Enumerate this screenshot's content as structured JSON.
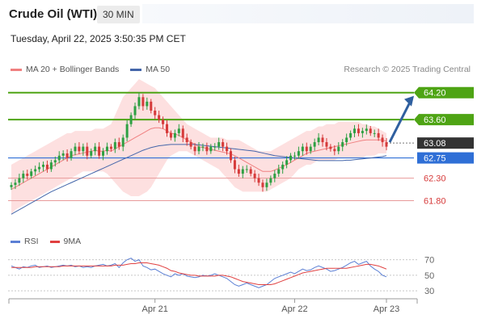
{
  "header": {
    "title": "Crude Oil (WTI)",
    "timeframe": "30 MIN",
    "timestamp": "Tuesday, April 22, 2025 3:50:35 PM CET"
  },
  "legend": {
    "ma20_label": "MA 20 + Bollinger Bands",
    "ma50_label": "MA 50",
    "credit": "Research © 2025 Trading Central"
  },
  "colors": {
    "up": "#2ea043",
    "down": "#d63a3a",
    "bollinger_fill": "#fde0e0",
    "ma20": "#f08080",
    "ma50": "#4466aa",
    "resistance": "#4ea414",
    "support_blue": "#2f6fd6",
    "support_red": "#e89a9a",
    "current": "#333333",
    "arrow": "#2f5f9f",
    "rsi": "#5b7fd4",
    "rsi_ma": "#e04040"
  },
  "chart_data": [
    {
      "type": "candlestick",
      "name": "price",
      "ylim": [
        61.2,
        64.5
      ],
      "x_ticks": [
        {
          "label": "Apr 21",
          "index": 36
        },
        {
          "label": "Apr 22",
          "index": 71
        },
        {
          "label": "Apr 23",
          "index": 94
        }
      ],
      "levels": [
        {
          "value": 64.2,
          "label": "64.20",
          "kind": "resistance"
        },
        {
          "value": 63.6,
          "label": "63.60",
          "kind": "resistance"
        },
        {
          "value": 63.08,
          "label": "63.08",
          "kind": "current"
        },
        {
          "value": 62.75,
          "label": "62.75",
          "kind": "support_blue"
        },
        {
          "value": 62.3,
          "label": "62.30",
          "kind": "support_red"
        },
        {
          "value": 61.8,
          "label": "61.80",
          "kind": "support_red"
        }
      ],
      "closes": [
        62.15,
        62.2,
        62.3,
        62.4,
        62.35,
        62.45,
        62.5,
        62.55,
        62.6,
        62.5,
        62.65,
        62.7,
        62.8,
        62.85,
        62.75,
        62.9,
        63.0,
        62.9,
        63.0,
        62.8,
        62.9,
        63.0,
        62.8,
        62.9,
        63.0,
        62.95,
        63.1,
        63.0,
        63.2,
        63.5,
        63.7,
        63.9,
        64.1,
        63.9,
        64.0,
        63.8,
        63.7,
        63.6,
        63.5,
        63.3,
        63.2,
        63.3,
        63.4,
        63.2,
        63.1,
        63.0,
        62.9,
        63.0,
        63.0,
        62.9,
        63.0,
        63.0,
        63.1,
        63.0,
        62.9,
        62.7,
        62.5,
        62.4,
        62.5,
        62.5,
        62.4,
        62.3,
        62.2,
        62.1,
        62.2,
        62.3,
        62.4,
        62.5,
        62.6,
        62.7,
        62.8,
        62.8,
        62.9,
        63.0,
        62.9,
        63.0,
        63.1,
        63.2,
        63.1,
        63.0,
        62.95,
        62.9,
        63.0,
        63.1,
        63.2,
        63.3,
        63.4,
        63.3,
        63.35,
        63.4,
        63.3,
        63.3,
        63.2,
        63.1,
        63.0
      ],
      "band_upper": [
        62.6,
        62.65,
        62.7,
        62.75,
        62.8,
        62.85,
        62.9,
        62.95,
        63.0,
        63.05,
        63.1,
        63.15,
        63.2,
        63.25,
        63.3,
        63.3,
        63.35,
        63.35,
        63.35,
        63.35,
        63.35,
        63.4,
        63.4,
        63.4,
        63.45,
        63.5,
        63.7,
        63.9,
        64.1,
        64.2,
        64.3,
        64.4,
        64.5,
        64.45,
        64.4,
        64.35,
        64.3,
        64.2,
        64.1,
        64.0,
        63.9,
        63.8,
        63.7,
        63.6,
        63.5,
        63.45,
        63.4,
        63.35,
        63.3,
        63.25,
        63.2,
        63.2,
        63.2,
        63.2,
        63.15,
        63.15,
        63.15,
        63.15,
        63.1,
        63.05,
        63.0,
        62.95,
        62.9,
        62.9,
        62.9,
        62.9,
        62.95,
        63.0,
        63.05,
        63.1,
        63.15,
        63.2,
        63.25,
        63.3,
        63.35,
        63.35,
        63.4,
        63.45,
        63.45,
        63.5,
        63.5,
        63.5,
        63.55,
        63.55,
        63.55,
        63.55,
        63.55,
        63.55,
        63.5,
        63.5,
        63.45,
        63.45,
        63.4,
        63.35,
        63.3
      ],
      "band_lower": [
        61.5,
        61.6,
        61.65,
        61.7,
        61.75,
        61.8,
        61.85,
        61.9,
        61.95,
        62.0,
        62.05,
        62.1,
        62.15,
        62.2,
        62.25,
        62.3,
        62.35,
        62.4,
        62.45,
        62.45,
        62.45,
        62.45,
        62.45,
        62.45,
        62.4,
        62.3,
        62.2,
        62.1,
        62.0,
        61.95,
        61.9,
        61.9,
        61.9,
        61.95,
        62.0,
        62.1,
        62.25,
        62.4,
        62.55,
        62.7,
        62.8,
        62.85,
        62.9,
        62.9,
        62.9,
        62.85,
        62.8,
        62.75,
        62.7,
        62.65,
        62.6,
        62.55,
        62.5,
        62.4,
        62.3,
        62.2,
        62.1,
        62.05,
        62.0,
        62.0,
        62.0,
        62.0,
        62.0,
        62.0,
        62.0,
        62.05,
        62.1,
        62.15,
        62.2,
        62.25,
        62.3,
        62.4,
        62.5,
        62.55,
        62.6,
        62.6,
        62.65,
        62.7,
        62.7,
        62.7,
        62.7,
        62.7,
        62.75,
        62.75,
        62.75,
        62.75,
        62.75,
        62.75,
        62.75,
        62.8,
        62.8,
        62.8,
        62.85,
        62.85,
        62.85
      ],
      "ma20": [
        62.05,
        62.1,
        62.15,
        62.2,
        62.25,
        62.3,
        62.35,
        62.4,
        62.45,
        62.5,
        62.55,
        62.6,
        62.65,
        62.7,
        62.75,
        62.8,
        62.82,
        62.84,
        62.86,
        62.88,
        62.9,
        62.92,
        62.9,
        62.9,
        62.92,
        62.9,
        62.95,
        63.0,
        63.05,
        63.1,
        63.15,
        63.2,
        63.25,
        63.3,
        63.35,
        63.4,
        63.42,
        63.42,
        63.4,
        63.35,
        63.3,
        63.28,
        63.25,
        63.2,
        63.15,
        63.1,
        63.05,
        63.0,
        62.98,
        62.96,
        62.94,
        62.92,
        62.9,
        62.88,
        62.86,
        62.84,
        62.8,
        62.75,
        62.7,
        62.65,
        62.6,
        62.55,
        62.5,
        62.45,
        62.45,
        62.45,
        62.48,
        62.52,
        62.56,
        62.6,
        62.65,
        62.7,
        62.75,
        62.8,
        62.85,
        62.88,
        62.9,
        62.92,
        62.94,
        62.96,
        62.98,
        63.0,
        63.02,
        63.04,
        63.06,
        63.08,
        63.1,
        63.12,
        63.14,
        63.15,
        63.15,
        63.15,
        63.15,
        63.15,
        63.12
      ],
      "ma50": [
        61.5,
        61.55,
        61.6,
        61.65,
        61.7,
        61.75,
        61.8,
        61.85,
        61.9,
        61.95,
        62.0,
        62.04,
        62.08,
        62.12,
        62.16,
        62.2,
        62.24,
        62.28,
        62.32,
        62.36,
        62.4,
        62.44,
        62.48,
        62.52,
        62.56,
        62.6,
        62.64,
        62.68,
        62.72,
        62.76,
        62.8,
        62.84,
        62.88,
        62.92,
        62.95,
        62.98,
        63.0,
        63.02,
        63.03,
        63.04,
        63.05,
        63.05,
        63.05,
        63.05,
        63.05,
        63.05,
        63.05,
        63.04,
        63.03,
        63.02,
        63.01,
        63.0,
        62.99,
        62.98,
        62.97,
        62.96,
        62.95,
        62.94,
        62.93,
        62.92,
        62.91,
        62.9,
        62.88,
        62.86,
        62.84,
        62.82,
        62.8,
        62.79,
        62.78,
        62.77,
        62.76,
        62.75,
        62.74,
        62.73,
        62.72,
        62.71,
        62.7,
        62.69,
        62.69,
        62.69,
        62.69,
        62.69,
        62.69,
        62.69,
        62.7,
        62.7,
        62.71,
        62.72,
        62.73,
        62.74,
        62.75,
        62.76,
        62.77,
        62.78,
        62.8
      ],
      "projection": {
        "from_index": 94,
        "from_value": 63.1,
        "to_value": 64.2
      }
    },
    {
      "type": "line",
      "name": "rsi",
      "ylim": [
        25,
        80
      ],
      "y_ticks": [
        70,
        50,
        30
      ],
      "series": [
        {
          "name": "RSI",
          "values": [
            62,
            60,
            58,
            61,
            60,
            62,
            63,
            60,
            61,
            62,
            60,
            61,
            62,
            63,
            62,
            63,
            61,
            62,
            60,
            61,
            60,
            62,
            63,
            64,
            62,
            63,
            65,
            60,
            66,
            70,
            72,
            68,
            70,
            62,
            60,
            57,
            58,
            55,
            52,
            50,
            48,
            52,
            50,
            52,
            49,
            48,
            47,
            48,
            50,
            49,
            50,
            52,
            50,
            48,
            46,
            42,
            38,
            36,
            38,
            40,
            38,
            36,
            34,
            36,
            38,
            42,
            46,
            48,
            50,
            52,
            54,
            52,
            55,
            58,
            56,
            57,
            60,
            62,
            60,
            58,
            55,
            56,
            58,
            60,
            63,
            66,
            68,
            64,
            66,
            68,
            62,
            58,
            55,
            50,
            48
          ]
        },
        {
          "name": "9MA",
          "values": [
            60,
            60,
            60,
            60,
            60,
            60,
            61,
            61,
            61,
            61,
            61,
            61,
            61,
            62,
            62,
            62,
            62,
            62,
            62,
            62,
            62,
            62,
            62,
            62,
            62,
            62,
            63,
            63,
            63,
            64,
            65,
            65,
            66,
            66,
            66,
            65,
            64,
            63,
            61,
            59,
            56,
            55,
            53,
            52,
            51,
            50,
            50,
            49,
            49,
            49,
            49,
            49,
            50,
            50,
            49,
            48,
            46,
            44,
            42,
            41,
            40,
            39,
            38,
            38,
            38,
            38,
            39,
            41,
            43,
            45,
            47,
            49,
            51,
            53,
            54,
            55,
            56,
            57,
            58,
            59,
            59,
            59,
            59,
            59,
            59,
            60,
            61,
            62,
            63,
            64,
            64,
            63,
            62,
            60,
            58
          ]
        }
      ]
    }
  ]
}
